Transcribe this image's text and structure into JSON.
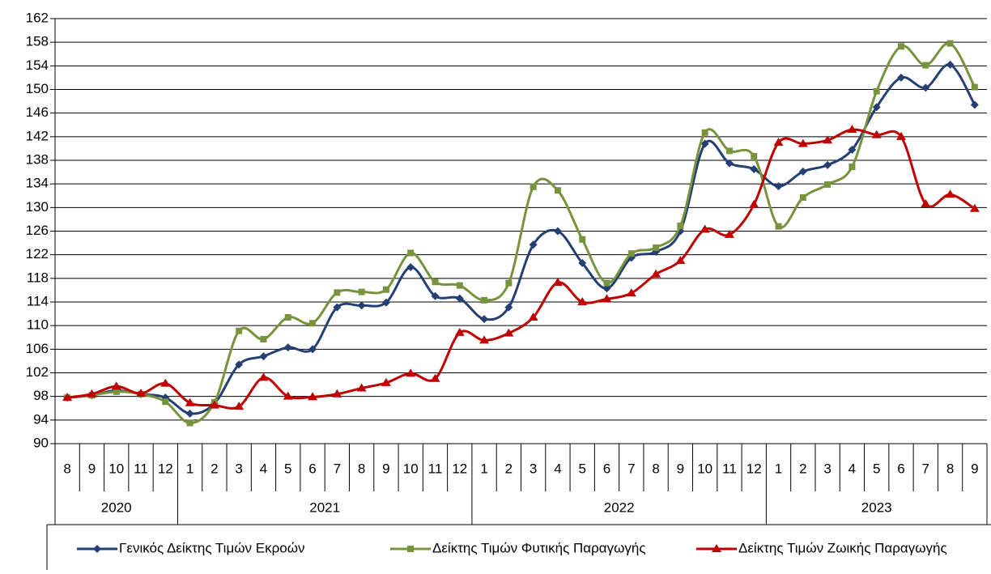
{
  "chart_data": {
    "type": "line",
    "categories": [
      "8",
      "9",
      "10",
      "11",
      "12",
      "1",
      "2",
      "3",
      "4",
      "5",
      "6",
      "7",
      "8",
      "9",
      "10",
      "11",
      "12",
      "1",
      "2",
      "3",
      "4",
      "5",
      "6",
      "7",
      "8",
      "9",
      "10",
      "11",
      "12",
      "1",
      "2",
      "3",
      "4",
      "5",
      "6",
      "7",
      "8",
      "9"
    ],
    "x_groups": [
      "2020",
      "2021",
      "2022",
      "2023"
    ],
    "series": [
      {
        "name": "Γενικός Δείκτης Τιμών Εκροών",
        "color": "#243f73",
        "marker": "diamond",
        "values": [
          97.8,
          98.2,
          99.0,
          98.4,
          97.8,
          95.1,
          96.8,
          103.4,
          104.8,
          106.3,
          106.0,
          113.1,
          113.4,
          113.9,
          119.9,
          115.0,
          114.6,
          111.1,
          113.1,
          123.7,
          126.0,
          120.6,
          116.3,
          121.5,
          122.5,
          126.0,
          140.8,
          137.5,
          136.5,
          133.6,
          136.1,
          137.2,
          139.8,
          147.0,
          152.0,
          150.3,
          154.2,
          147.4
        ]
      },
      {
        "name": "Δείκτης Τιμών Φυτικής Παραγωγής",
        "color": "#77933c",
        "marker": "square",
        "values": [
          97.8,
          98.2,
          98.8,
          98.4,
          97.1,
          93.5,
          97.0,
          109.1,
          107.7,
          111.4,
          110.4,
          115.6,
          115.7,
          116.1,
          122.3,
          117.4,
          116.8,
          114.3,
          117.2,
          133.5,
          132.9,
          124.6,
          117.2,
          122.2,
          123.2,
          126.9,
          142.7,
          139.6,
          138.7,
          126.8,
          131.7,
          133.9,
          136.9,
          149.7,
          157.3,
          154.1,
          157.8,
          150.4
        ]
      },
      {
        "name": "Δείκτης Τιμών Ζωικής Παραγωγής",
        "color": "#c00000",
        "marker": "triangle",
        "values": [
          97.8,
          98.4,
          99.7,
          98.5,
          100.2,
          96.9,
          96.5,
          96.3,
          101.2,
          98.0,
          97.9,
          98.4,
          99.4,
          100.3,
          101.9,
          101.0,
          108.8,
          107.5,
          108.7,
          111.4,
          117.3,
          114.0,
          114.5,
          115.5,
          118.7,
          121.0,
          126.3,
          125.4,
          130.5,
          141.0,
          140.8,
          141.4,
          143.2,
          142.3,
          142.0,
          130.6,
          132.2,
          129.8
        ]
      }
    ],
    "ylim": [
      90,
      162
    ],
    "yticks": [
      90,
      94,
      98,
      102,
      106,
      110,
      114,
      118,
      122,
      126,
      130,
      134,
      138,
      142,
      146,
      150,
      154,
      158,
      162
    ],
    "grid": true,
    "legend": "bottom"
  }
}
